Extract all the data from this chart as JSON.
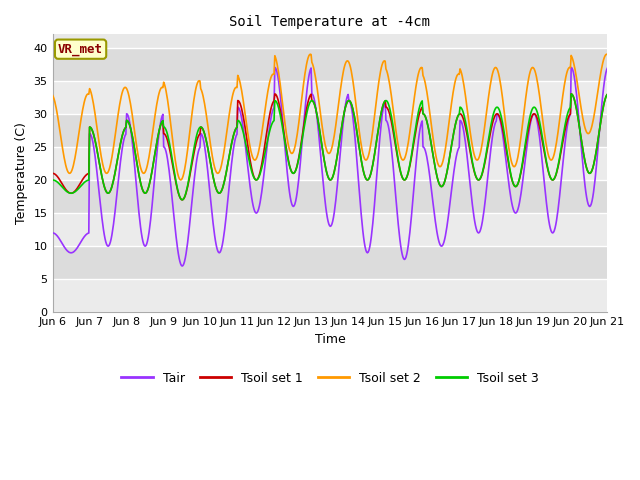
{
  "title": "Soil Temperature at -4cm",
  "xlabel": "Time",
  "ylabel": "Temperature (C)",
  "ylim": [
    0,
    42
  ],
  "yticks": [
    0,
    5,
    10,
    15,
    20,
    25,
    30,
    35,
    40
  ],
  "plot_bg_color": "#e8e8e8",
  "stripe_color": "#d0d0d0",
  "fig_color": "#ffffff",
  "line_colors": {
    "Tair": "#9933ff",
    "Tsoil1": "#cc0000",
    "Tsoil2": "#ff9900",
    "Tsoil3": "#00cc00"
  },
  "legend_labels": [
    "Tair",
    "Tsoil set 1",
    "Tsoil set 2",
    "Tsoil set 3"
  ],
  "annotation_text": "VR_met",
  "annotation_color": "#8b0000",
  "annotation_bg": "#ffffcc",
  "annotation_border": "#999900",
  "n_days": 15,
  "start_day": 6,
  "tair_mins": [
    9,
    10,
    10,
    7,
    9,
    15,
    16,
    13,
    9,
    8,
    10,
    12,
    15,
    12,
    16
  ],
  "tair_maxs": [
    12,
    27,
    30,
    25,
    27,
    31,
    37,
    33,
    32,
    29,
    25,
    29,
    30,
    30,
    37
  ],
  "tsoil1_mins": [
    18,
    18,
    18,
    17,
    18,
    20,
    21,
    20,
    20,
    20,
    19,
    20,
    19,
    20,
    21
  ],
  "tsoil1_maxs": [
    21,
    28,
    29,
    27,
    28,
    32,
    33,
    32,
    32,
    31,
    30,
    30,
    30,
    30,
    33
  ],
  "tsoil2_mins": [
    21,
    21,
    21,
    20,
    21,
    23,
    24,
    24,
    23,
    23,
    22,
    23,
    22,
    23,
    27
  ],
  "tsoil2_maxs": [
    33,
    34,
    34,
    35,
    34,
    36,
    39,
    38,
    38,
    37,
    36,
    37,
    37,
    37,
    39
  ],
  "tsoil3_mins": [
    18,
    18,
    18,
    17,
    18,
    20,
    21,
    20,
    20,
    20,
    19,
    20,
    19,
    20,
    21
  ],
  "tsoil3_maxs": [
    20,
    28,
    29,
    28,
    28,
    29,
    32,
    32,
    32,
    32,
    30,
    31,
    31,
    31,
    33
  ],
  "line_width": 1.2,
  "title_fontsize": 10,
  "label_fontsize": 9,
  "tick_fontsize": 8,
  "legend_fontsize": 9
}
